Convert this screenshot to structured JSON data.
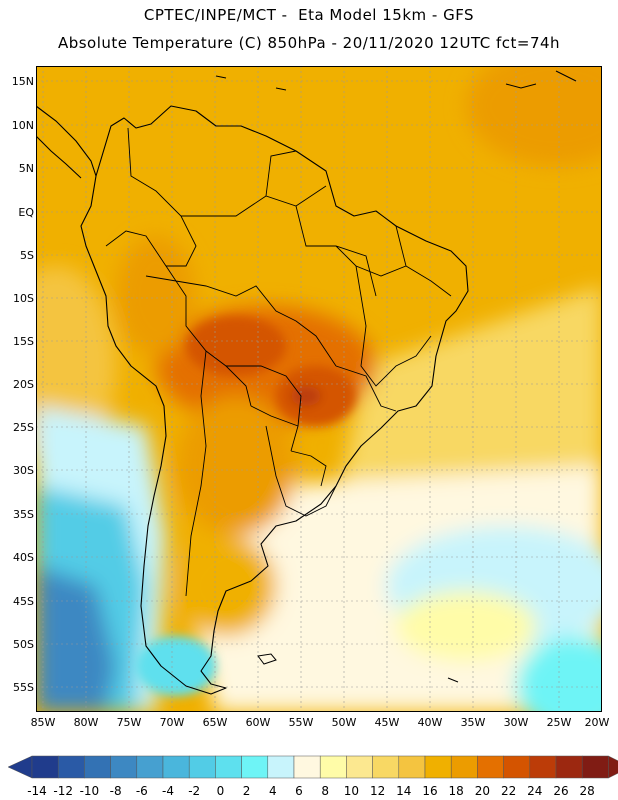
{
  "header": {
    "line1": "CPTEC/INPE/MCT -  Eta Model 15km - GFS",
    "line2": "Absolute Temperature (C) 850hPa - 20/11/2020 12UTC fct=74h"
  },
  "map": {
    "lat_labels": [
      "15N",
      "10N",
      "5N",
      "EQ",
      "5S",
      "10S",
      "15S",
      "20S",
      "25S",
      "30S",
      "35S",
      "40S",
      "45S",
      "50S",
      "55S"
    ],
    "lon_labels": [
      "85W",
      "80W",
      "75W",
      "70W",
      "65W",
      "60W",
      "55W",
      "50W",
      "45W",
      "40W",
      "35W",
      "30W",
      "25W",
      "20W"
    ]
  },
  "colorbar": {
    "labels": [
      "-14",
      "-12",
      "-10",
      "-8",
      "-6",
      "-4",
      "-2",
      "0",
      "2",
      "4",
      "6",
      "8",
      "10",
      "12",
      "14",
      "16",
      "18",
      "20",
      "22",
      "24",
      "26",
      "28"
    ],
    "colors": [
      "#203c8c",
      "#2a5aa6",
      "#3372b4",
      "#3d88c2",
      "#46a0d0",
      "#4ab6dc",
      "#52cce6",
      "#5ee0ee",
      "#6ef4f6",
      "#c8f4fc",
      "#fff8e0",
      "#fffca8",
      "#fce890",
      "#f8d864",
      "#f4c440",
      "#f0b000",
      "#ec9c00",
      "#e47000",
      "#d45400",
      "#bc3c08",
      "#9c2810",
      "#801c14"
    ]
  }
}
